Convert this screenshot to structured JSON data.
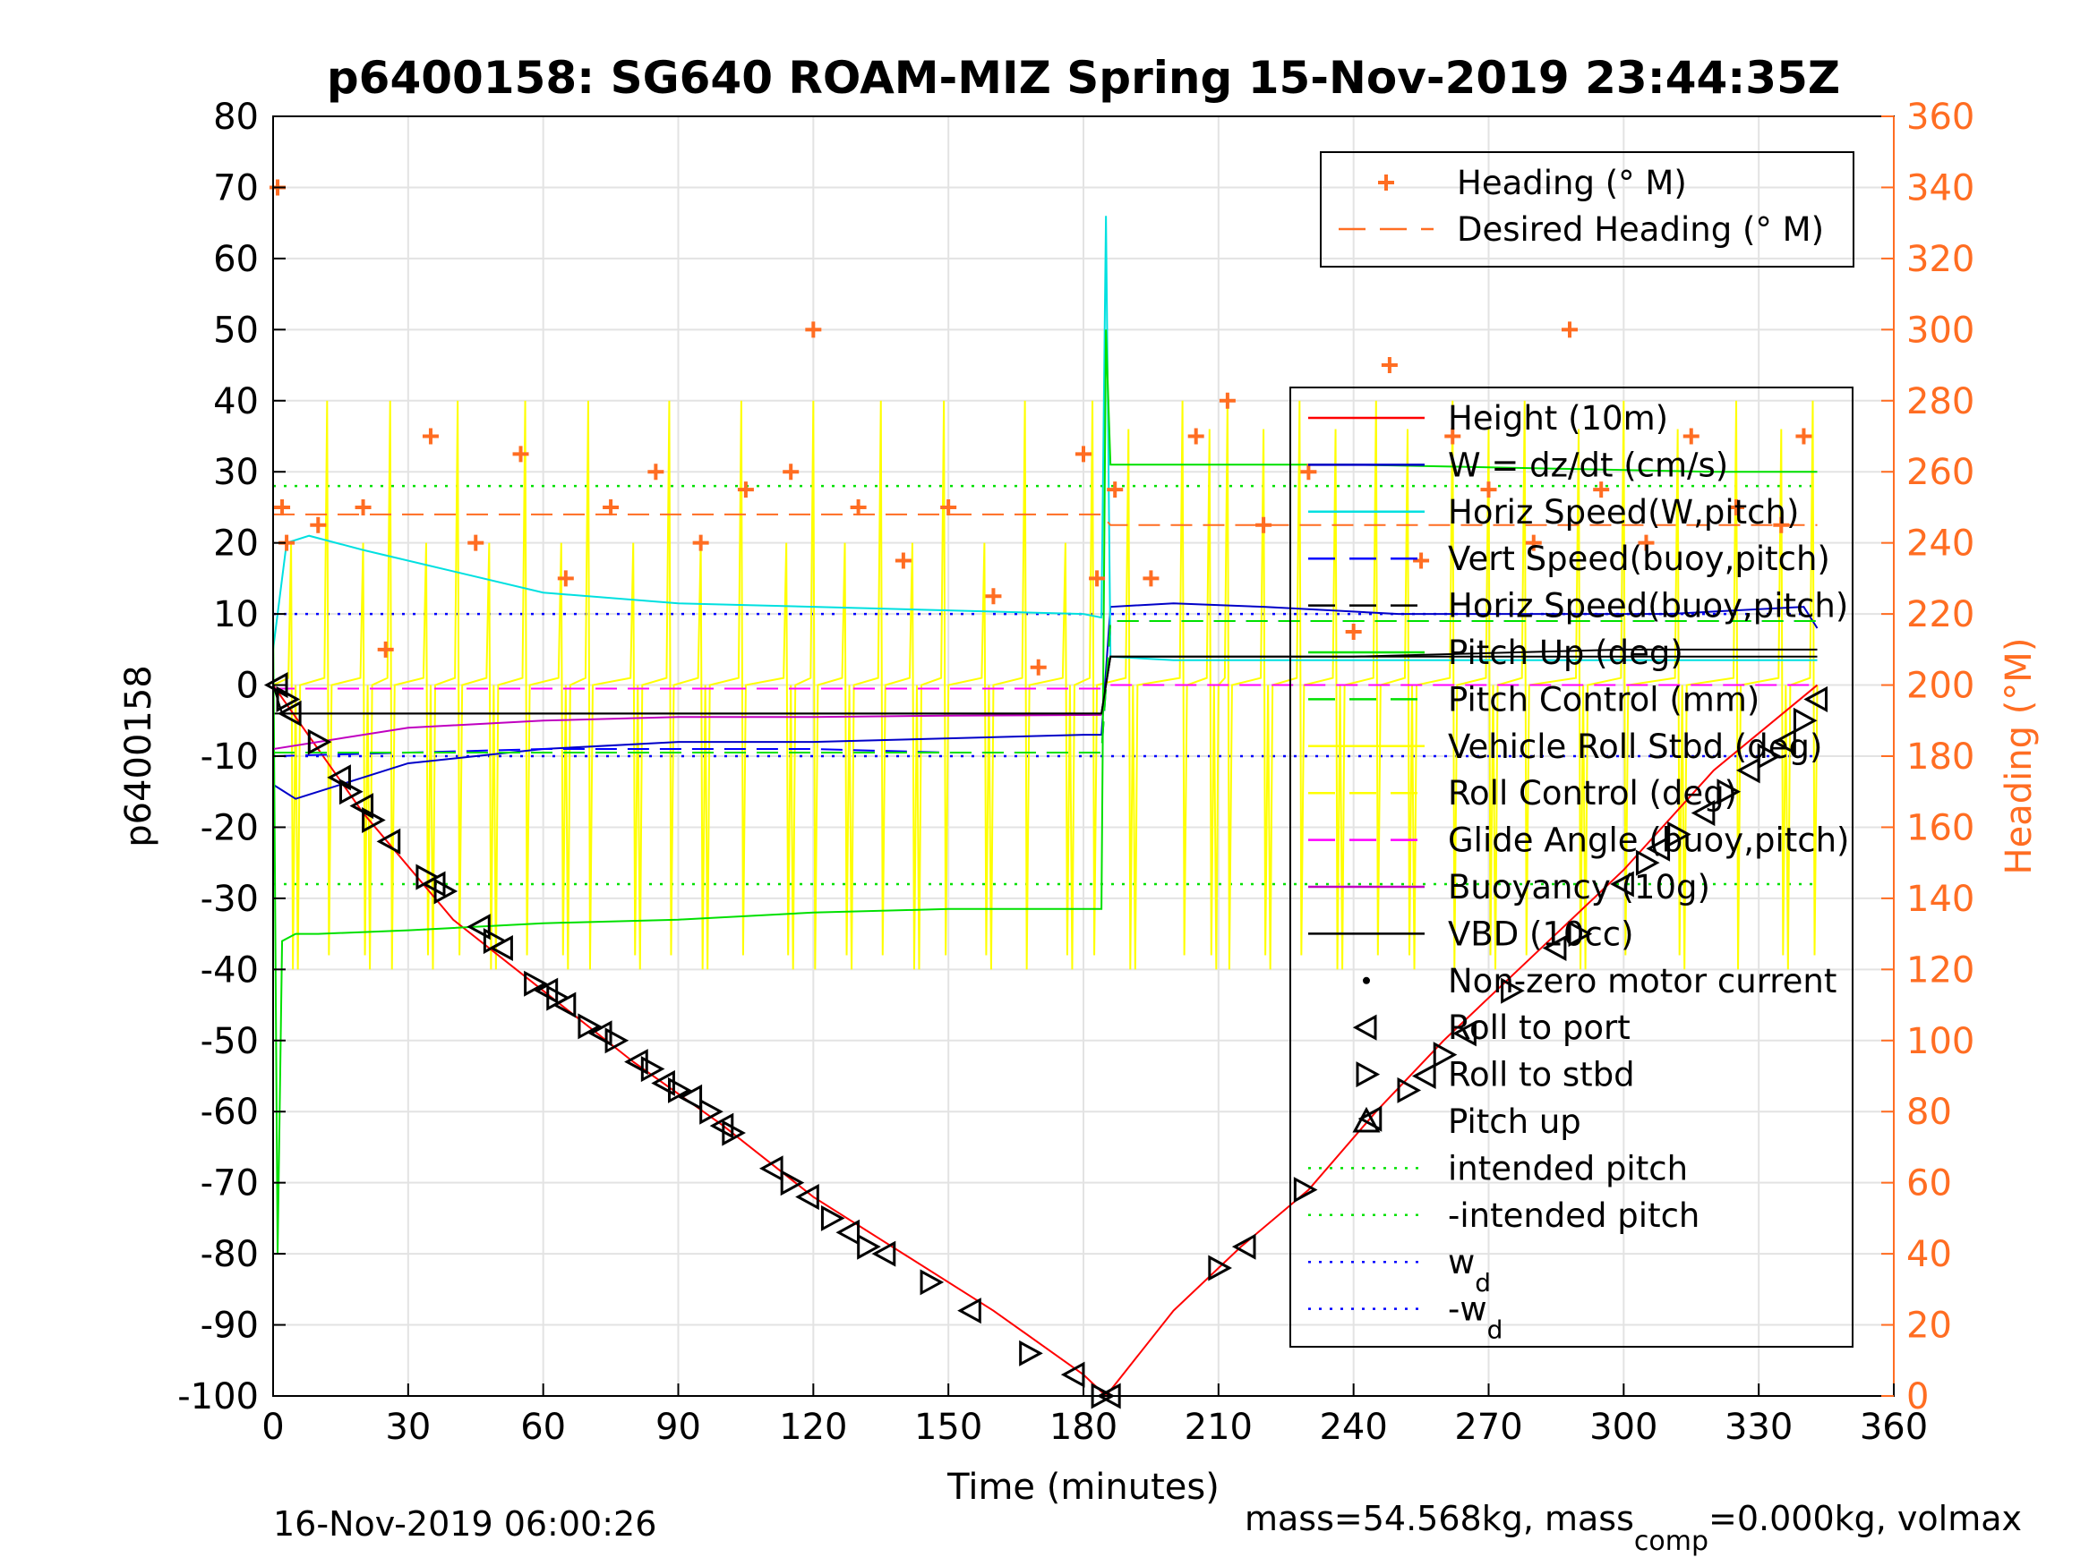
{
  "chart_data": {
    "type": "line",
    "title": "p6400158: SG640 ROAM-MIZ Spring 15-Nov-2019 23:44:35Z",
    "xlabel": "Time (minutes)",
    "ylabel": "p6400158",
    "ylabel_right": "Heading (°M)",
    "xlim": [
      0,
      360
    ],
    "ylim": [
      -100,
      80
    ],
    "ylim_right": [
      0,
      360
    ],
    "x_ticks": [
      0,
      30,
      60,
      90,
      120,
      150,
      180,
      210,
      240,
      270,
      300,
      330,
      360
    ],
    "y_ticks": [
      80,
      70,
      60,
      50,
      40,
      30,
      20,
      10,
      0,
      -10,
      -20,
      -30,
      -40,
      -50,
      -60,
      -70,
      -80,
      -90,
      -100
    ],
    "y_ticks_right": [
      360,
      340,
      320,
      300,
      280,
      260,
      240,
      220,
      200,
      180,
      160,
      140,
      120,
      100,
      80,
      60,
      40,
      20,
      0
    ],
    "grid": true,
    "footer_left": "16-Nov-2019 06:00:26",
    "footer_right": "mass=54.568kg, mass",
    "footer_right_sub": "comp",
    "footer_right_tail": "=0.000kg, volmax",
    "legend_heading": [
      {
        "label": "Heading (° M)",
        "color": "#ff6d22",
        "style": "plus"
      },
      {
        "label": "Desired Heading (° M)",
        "color": "#ff6d22",
        "style": "dash"
      }
    ],
    "legend_main": [
      {
        "label": "Height (10m)",
        "color": "#ff0000",
        "style": "solid"
      },
      {
        "label": "W = dz/dt (cm/s)",
        "color": "#0000c8",
        "style": "solid"
      },
      {
        "label": "Horiz Speed(W,pitch)",
        "color": "#00e0e0",
        "style": "solid"
      },
      {
        "label": "Vert Speed(buoy,pitch)",
        "color": "#0000ff",
        "style": "dash"
      },
      {
        "label": "Horiz Speed(buoy,pitch)",
        "color": "#000000",
        "style": "dash"
      },
      {
        "label": "Pitch Up (deg)",
        "color": "#00e000",
        "style": "solid"
      },
      {
        "label": "Pitch Control (mm)",
        "color": "#00e000",
        "style": "dash"
      },
      {
        "label": "Vehicle Roll Stbd (deg)",
        "color": "#ffff00",
        "style": "solid"
      },
      {
        "label": "Roll Control (deg)",
        "color": "#ffff00",
        "style": "dash"
      },
      {
        "label": "Glide Angle (buoy,pitch)",
        "color": "#ff00ff",
        "style": "dash"
      },
      {
        "label": "Buoyancy (10g)",
        "color": "#c000c0",
        "style": "solid"
      },
      {
        "label": "VBD (10cc)",
        "color": "#000000",
        "style": "solid"
      },
      {
        "label": "Non-zero motor current",
        "color": "#000000",
        "style": "dot"
      },
      {
        "label": "Roll to port",
        "color": "#000000",
        "style": "tri-left"
      },
      {
        "label": "Roll to stbd",
        "color": "#000000",
        "style": "tri-right"
      },
      {
        "label": "Pitch up",
        "color": "#000000",
        "style": "tri-up"
      },
      {
        "label": "intended pitch",
        "color": "#00e000",
        "style": "dotted"
      },
      {
        "label": "-intended pitch",
        "color": "#00e000",
        "style": "dotted"
      },
      {
        "label": "w",
        "sub": "d",
        "color": "#0000ff",
        "style": "dotted"
      },
      {
        "label": "-w",
        "sub": "d",
        "color": "#0000ff",
        "style": "dotted"
      }
    ],
    "series": [
      {
        "name": "Height (10m)",
        "color": "#ff0000",
        "axis": "left",
        "x": [
          0,
          20,
          40,
          60,
          80,
          100,
          120,
          140,
          160,
          180,
          185,
          200,
          215,
          230,
          245,
          260,
          280,
          300,
          320,
          343
        ],
        "values": [
          0,
          -18,
          -33,
          -43,
          -53,
          -62,
          -72,
          -80,
          -88,
          -97,
          -100,
          -88,
          -79,
          -71,
          -60,
          -50,
          -38,
          -26,
          -12,
          0
        ]
      },
      {
        "name": "W = dz/dt (cm/s)",
        "color": "#0000c8",
        "axis": "left",
        "x": [
          0,
          5,
          15,
          30,
          45,
          60,
          90,
          120,
          150,
          180,
          184,
          186,
          200,
          220,
          250,
          280,
          310,
          340,
          343
        ],
        "values": [
          -14,
          -16,
          -14,
          -11,
          -10,
          -9,
          -8,
          -8,
          -7.5,
          -7,
          -7,
          11,
          11.5,
          11,
          10,
          10,
          10,
          11,
          8
        ]
      },
      {
        "name": "Horiz Speed(W,pitch)",
        "color": "#00e0e0",
        "axis": "left",
        "x": [
          0,
          3,
          8,
          20,
          40,
          60,
          90,
          120,
          150,
          180,
          184,
          185,
          186,
          200,
          230,
          260,
          300,
          343
        ],
        "values": [
          5,
          20,
          21,
          19,
          16,
          13,
          11.5,
          11,
          10.5,
          10,
          9.5,
          66,
          4,
          3.5,
          3.5,
          3.5,
          3.5,
          3.5
        ]
      },
      {
        "name": "Vert Speed(buoy,pitch)",
        "color": "#0000ff",
        "axis": "left",
        "x": [
          0,
          30,
          60,
          90,
          120,
          150,
          184,
          186,
          220,
          260,
          300,
          343
        ],
        "values": [
          -10,
          -9.5,
          -9,
          -9,
          -9,
          -9.5,
          -9.5,
          9,
          9,
          9,
          9,
          9
        ]
      },
      {
        "name": "Horiz Speed(buoy,pitch)",
        "color": "#000000",
        "axis": "left",
        "x": [
          0,
          60,
          120,
          184,
          186,
          240,
          300,
          343
        ],
        "values": [
          -4,
          -4,
          -4,
          -4,
          4,
          4,
          5,
          5
        ]
      },
      {
        "name": "Pitch Up (deg)",
        "color": "#00e000",
        "axis": "left",
        "x": [
          0,
          1,
          2,
          5,
          10,
          30,
          60,
          90,
          120,
          150,
          180,
          184,
          185,
          186,
          200,
          240,
          280,
          320,
          343
        ],
        "values": [
          10,
          -80,
          -36,
          -35,
          -35,
          -34.5,
          -33.5,
          -33,
          -32,
          -31.5,
          -31.5,
          -31.5,
          50,
          31,
          31,
          31,
          30.5,
          30,
          30
        ]
      },
      {
        "name": "Pitch Control (mm)",
        "color": "#00e000",
        "axis": "left",
        "x": [
          0,
          184,
          186,
          343
        ],
        "values": [
          -9.5,
          -9.5,
          9,
          9
        ]
      },
      {
        "name": "Glide Angle (buoy,pitch)",
        "color": "#ff00ff",
        "axis": "left",
        "x": [
          0,
          184,
          186,
          343
        ],
        "values": [
          -0.5,
          -0.5,
          0,
          0
        ]
      },
      {
        "name": "Buoyancy (10g)",
        "color": "#c000c0",
        "axis": "left",
        "x": [
          0,
          10,
          30,
          60,
          90,
          120,
          150,
          184
        ],
        "values": [
          -9,
          -8,
          -6,
          -5,
          -4.5,
          -4.5,
          -4.3,
          -4.2
        ]
      },
      {
        "name": "VBD (10cc)",
        "color": "#000000",
        "axis": "left",
        "x": [
          0,
          2,
          100,
          184,
          186,
          250,
          343
        ],
        "values": [
          0,
          -4,
          -4,
          -4,
          4,
          4,
          4
        ]
      },
      {
        "name": "Heading (° M)",
        "color": "#ff6d22",
        "axis": "right",
        "x": [
          1,
          2,
          3,
          10,
          20,
          25,
          35,
          45,
          55,
          65,
          75,
          85,
          95,
          105,
          115,
          120,
          130,
          140,
          150,
          160,
          170,
          180,
          183,
          187,
          195,
          205,
          212,
          220,
          230,
          240,
          248,
          255,
          262,
          270,
          280,
          288,
          295,
          305,
          315,
          325,
          335,
          340
        ],
        "values": [
          340,
          250,
          240,
          245,
          250,
          210,
          270,
          240,
          265,
          230,
          250,
          260,
          240,
          255,
          260,
          300,
          250,
          235,
          250,
          225,
          205,
          265,
          230,
          255,
          230,
          270,
          280,
          245,
          260,
          215,
          290,
          235,
          270,
          255,
          240,
          300,
          255,
          240,
          270,
          250,
          245,
          270
        ]
      },
      {
        "name": "Desired Heading (° M)",
        "color": "#ff6d22",
        "axis": "right",
        "x": [
          0,
          184,
          186,
          343
        ],
        "values": [
          248,
          248,
          245,
          245
        ]
      }
    ],
    "reference_lines": [
      {
        "name": "intended pitch",
        "y": 28,
        "color": "#00e000"
      },
      {
        "name": "-intended pitch",
        "y": -28,
        "color": "#00e000"
      },
      {
        "name": "w_d",
        "y": 10,
        "color": "#0000ff"
      },
      {
        "name": "-w_d",
        "y": -10,
        "color": "#0000ff"
      }
    ],
    "roll_trace": {
      "name": "Vehicle Roll Stbd (deg)",
      "color": "#ffff00",
      "spike_minutes": [
        4,
        12,
        20,
        26,
        34,
        41,
        48,
        56,
        64,
        70,
        80,
        88,
        95,
        104,
        114,
        120,
        127,
        135,
        142,
        149,
        158,
        167,
        176,
        182,
        190,
        202,
        208,
        212,
        220,
        228,
        236,
        245,
        252,
        262,
        270,
        278,
        290,
        300,
        312,
        325,
        335,
        342
      ]
    },
    "roll_markers": {
      "x": [
        1,
        3,
        4,
        10,
        15,
        17,
        20,
        22,
        26,
        34,
        36,
        38,
        46,
        49,
        51,
        58,
        61,
        63,
        65,
        70,
        73,
        76,
        81,
        84,
        87,
        90,
        93,
        97,
        100,
        102,
        111,
        115,
        119,
        124,
        128,
        132,
        136,
        146,
        155,
        168,
        178,
        184,
        186,
        210,
        216,
        229,
        244,
        252,
        256,
        260,
        265,
        275,
        285,
        290,
        300,
        305,
        308,
        312,
        318,
        323,
        328,
        332,
        336,
        340,
        343
      ],
      "y": [
        0,
        -2,
        -4,
        -8,
        -13,
        -15,
        -17,
        -19,
        -22,
        -27,
        -28,
        -29,
        -34,
        -36,
        -37,
        -42,
        -43,
        -44,
        -45,
        -48,
        -49,
        -50,
        -53,
        -54,
        -56,
        -57,
        -58,
        -60,
        -62,
        -63,
        -68,
        -70,
        -72,
        -75,
        -77,
        -79,
        -80,
        -84,
        -88,
        -94,
        -97,
        -100,
        -100,
        -82,
        -79,
        -71,
        -61,
        -57,
        -55,
        -52,
        -49,
        -43,
        -37,
        -35,
        -28,
        -25,
        -23,
        -21,
        -18,
        -15,
        -12,
        -10,
        -8,
        -5,
        -2
      ]
    }
  }
}
